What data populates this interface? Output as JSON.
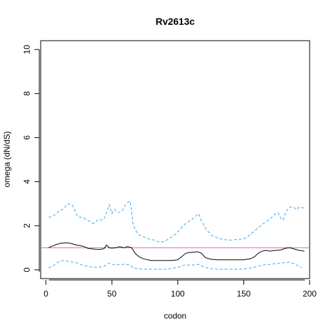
{
  "chart_data": {
    "type": "line",
    "title": "Rv2613c",
    "xlabel": "codon",
    "ylabel": "omega (dN/dS)",
    "xlim": [
      -4,
      200
    ],
    "ylim": [
      -0.4,
      10.4
    ],
    "x_ticks": [
      0,
      50,
      100,
      150,
      200
    ],
    "y_ticks": [
      0,
      2,
      4,
      6,
      8,
      10
    ],
    "grid": false,
    "reference_line": {
      "y": 1,
      "color": "#cc66cc"
    },
    "series": [
      {
        "color": "#000000",
        "dash": "solid",
        "x": [
          2,
          5,
          8,
          11,
          14,
          17,
          20,
          23,
          26,
          29,
          32,
          35,
          38,
          41,
          44,
          46,
          48,
          50,
          53,
          56,
          59,
          62,
          65,
          68,
          71,
          74,
          77,
          80,
          85,
          90,
          95,
          100,
          103,
          106,
          109,
          112,
          115,
          118,
          121,
          125,
          130,
          135,
          140,
          145,
          150,
          155,
          158,
          161,
          164,
          167,
          170,
          174,
          178,
          182,
          185,
          188,
          192,
          196
        ],
        "y": [
          1.0,
          1.08,
          1.15,
          1.2,
          1.22,
          1.22,
          1.18,
          1.12,
          1.1,
          1.05,
          0.97,
          0.95,
          0.93,
          0.92,
          0.96,
          1.12,
          1.0,
          0.98,
          1.0,
          1.05,
          1.0,
          1.05,
          1.0,
          0.72,
          0.58,
          0.5,
          0.45,
          0.42,
          0.42,
          0.42,
          0.42,
          0.45,
          0.6,
          0.75,
          0.78,
          0.8,
          0.82,
          0.75,
          0.55,
          0.48,
          0.45,
          0.45,
          0.45,
          0.45,
          0.45,
          0.5,
          0.58,
          0.75,
          0.85,
          0.88,
          0.85,
          0.88,
          0.9,
          0.98,
          1.0,
          0.95,
          0.88,
          0.85
        ]
      },
      {
        "color": "#33aaee",
        "dash": "dashed",
        "x": [
          2,
          5,
          8,
          10,
          12,
          14,
          16,
          18,
          20,
          22,
          24,
          26,
          28,
          30,
          33,
          36,
          38,
          40,
          42,
          44,
          46,
          48,
          50,
          52,
          54,
          56,
          58,
          60,
          62,
          64,
          66,
          68,
          70,
          74,
          78,
          82,
          86,
          90,
          94,
          98,
          102,
          106,
          110,
          114,
          116,
          118,
          122,
          126,
          130,
          134,
          138,
          142,
          146,
          150,
          154,
          158,
          162,
          166,
          170,
          174,
          176,
          178,
          180,
          182,
          185,
          188,
          190,
          192,
          196
        ],
        "y": [
          2.38,
          2.42,
          2.55,
          2.7,
          2.72,
          2.8,
          2.98,
          2.98,
          2.95,
          2.68,
          2.42,
          2.38,
          2.38,
          2.3,
          2.2,
          2.1,
          2.2,
          2.3,
          2.25,
          2.3,
          2.6,
          2.95,
          2.55,
          2.75,
          2.62,
          2.6,
          2.7,
          2.92,
          3.05,
          3.12,
          2.1,
          1.8,
          1.6,
          1.5,
          1.4,
          1.35,
          1.25,
          1.28,
          1.45,
          1.6,
          1.85,
          2.1,
          2.25,
          2.45,
          2.55,
          2.2,
          1.8,
          1.55,
          1.45,
          1.38,
          1.35,
          1.35,
          1.38,
          1.4,
          1.55,
          1.75,
          1.95,
          2.15,
          2.3,
          2.55,
          2.6,
          2.35,
          2.25,
          2.65,
          2.85,
          2.85,
          2.72,
          2.85,
          2.8
        ]
      },
      {
        "color": "#33aaee",
        "dash": "dashed",
        "x": [
          2,
          5,
          8,
          11,
          14,
          17,
          20,
          24,
          28,
          32,
          36,
          40,
          44,
          46,
          48,
          52,
          56,
          60,
          64,
          66,
          70,
          75,
          80,
          85,
          90,
          95,
          100,
          104,
          108,
          112,
          116,
          120,
          125,
          130,
          135,
          140,
          145,
          150,
          155,
          160,
          165,
          170,
          175,
          180,
          185,
          190,
          194
        ],
        "y": [
          0.1,
          0.15,
          0.3,
          0.4,
          0.42,
          0.38,
          0.35,
          0.3,
          0.2,
          0.15,
          0.12,
          0.12,
          0.15,
          0.25,
          0.3,
          0.22,
          0.25,
          0.25,
          0.22,
          0.08,
          0.05,
          0.03,
          0.03,
          0.03,
          0.03,
          0.05,
          0.1,
          0.2,
          0.22,
          0.22,
          0.25,
          0.12,
          0.05,
          0.03,
          0.03,
          0.03,
          0.03,
          0.04,
          0.08,
          0.15,
          0.22,
          0.25,
          0.28,
          0.32,
          0.35,
          0.22,
          0.1
        ]
      }
    ]
  }
}
